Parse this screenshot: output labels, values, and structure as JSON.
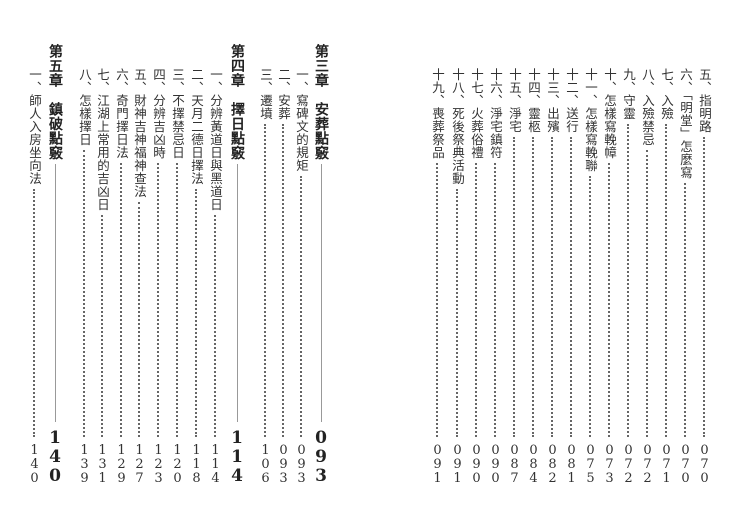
{
  "left_page": {
    "entries": [
      {
        "type": "chapter",
        "title": "第三章　安葬點竅",
        "page": "093"
      },
      {
        "type": "item",
        "title": "一、寫碑文的規矩",
        "page": "093"
      },
      {
        "type": "item",
        "title": "二、安葬",
        "page": "093"
      },
      {
        "type": "item",
        "title": "三、遷墳",
        "page": "106"
      },
      {
        "type": "chapter",
        "title": "第四章　擇日點竅",
        "page": "114"
      },
      {
        "type": "item",
        "title": "一、分辨黃道日與黑道日",
        "page": "114"
      },
      {
        "type": "item",
        "title": "二、天月二德日擇法",
        "page": "118"
      },
      {
        "type": "item",
        "title": "三、不擇禁忌日",
        "page": "120"
      },
      {
        "type": "item",
        "title": "四、分辨吉凶時",
        "page": "123"
      },
      {
        "type": "item",
        "title": "五、財神吉神福神查法",
        "page": "127"
      },
      {
        "type": "item",
        "title": "六、奇門擇日法",
        "page": "129"
      },
      {
        "type": "item",
        "title": "七、江湖上常用的吉凶日",
        "page": "131"
      },
      {
        "type": "item",
        "title": "八、怎樣擇日",
        "page": "139"
      },
      {
        "type": "chapter",
        "title": "第五章　鎮破點竅",
        "page": "140"
      },
      {
        "type": "item",
        "title": "一、師人入房坐向法",
        "page": "140"
      }
    ]
  },
  "right_page": {
    "entries": [
      {
        "type": "item",
        "title": "五、指明路",
        "page": "070"
      },
      {
        "type": "item",
        "title": "六、「明堂」怎麼寫",
        "page": "070"
      },
      {
        "type": "item",
        "title": "七、入殮",
        "page": "071"
      },
      {
        "type": "item",
        "title": "八、入殮禁忌",
        "page": "072"
      },
      {
        "type": "item",
        "title": "九、守靈",
        "page": "072"
      },
      {
        "type": "item",
        "title": "十、怎樣寫輓幛",
        "page": "073"
      },
      {
        "type": "item",
        "title": "十一、怎樣寫輓聯",
        "page": "075"
      },
      {
        "type": "item",
        "title": "十二、送行",
        "page": "081"
      },
      {
        "type": "item",
        "title": "十三、出殯",
        "page": "082"
      },
      {
        "type": "item",
        "title": "十四、靈柩",
        "page": "084"
      },
      {
        "type": "item",
        "title": "十五、淨宅",
        "page": "087"
      },
      {
        "type": "item",
        "title": "十六、淨宅鎮符",
        "page": "090"
      },
      {
        "type": "item",
        "title": "十七、火葬俗禮",
        "page": "090"
      },
      {
        "type": "item",
        "title": "十八、死後祭典活動",
        "page": "091"
      },
      {
        "type": "item",
        "title": "十九、喪葬祭品",
        "page": "091"
      }
    ]
  }
}
